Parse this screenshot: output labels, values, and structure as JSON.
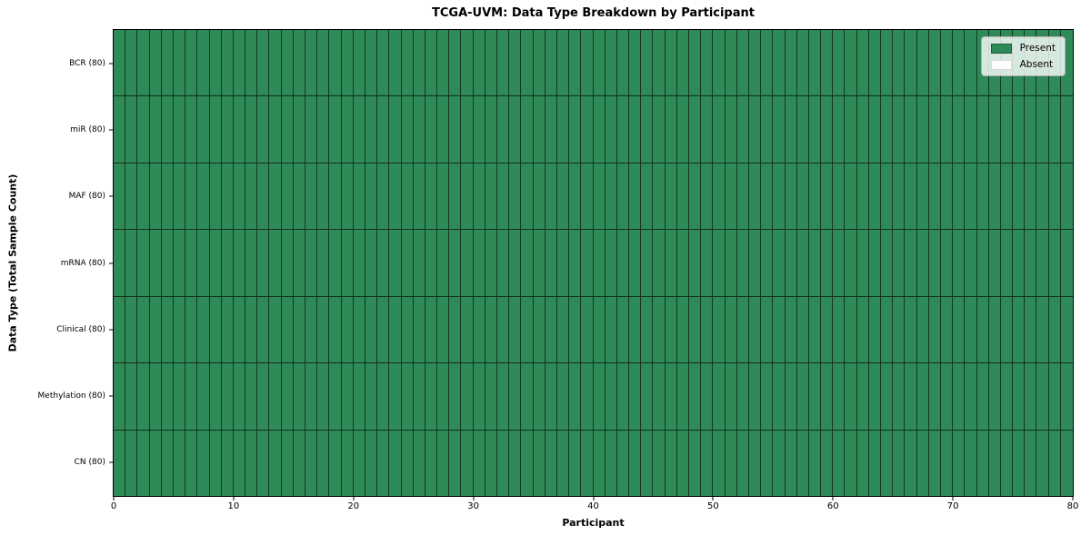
{
  "figure": {
    "title": "TCGA-UVM: Data Type Breakdown by Participant",
    "xlabel": "Participant",
    "ylabel": "Data Type (Total Sample Count)"
  },
  "legend": {
    "position": "upper right",
    "entries": [
      {
        "label": "Present",
        "color": "#2e8b57"
      },
      {
        "label": "Absent",
        "color": "#ffffff"
      }
    ]
  },
  "chart_data": {
    "type": "heatmap",
    "title": "TCGA-UVM: Data Type Breakdown by Participant",
    "xlabel": "Participant",
    "ylabel": "Data Type (Total Sample Count)",
    "xlim": [
      0,
      80
    ],
    "x_ticks": [
      0,
      10,
      20,
      30,
      40,
      50,
      60,
      70,
      80
    ],
    "n_participants": 80,
    "rows": [
      {
        "label": "BCR (80)",
        "present_count": 80,
        "absent_count": 0
      },
      {
        "label": "miR (80)",
        "present_count": 80,
        "absent_count": 0
      },
      {
        "label": "MAF (80)",
        "present_count": 80,
        "absent_count": 0
      },
      {
        "label": "mRNA (80)",
        "present_count": 80,
        "absent_count": 0
      },
      {
        "label": "Clinical (80)",
        "present_count": 80,
        "absent_count": 0
      },
      {
        "label": "Methylation (80)",
        "present_count": 80,
        "absent_count": 0
      },
      {
        "label": "CN (80)",
        "present_count": 80,
        "absent_count": 0
      }
    ],
    "cell_values_note": "every participant cell in every row is Present",
    "colors": {
      "present": "#2e8b57",
      "absent": "#ffffff",
      "cell_edge": "rgba(0,0,0,0.6)",
      "spine": "#000000"
    },
    "legend_entries": [
      "Present",
      "Absent"
    ],
    "legend_position": "upper right",
    "grid": false
  }
}
